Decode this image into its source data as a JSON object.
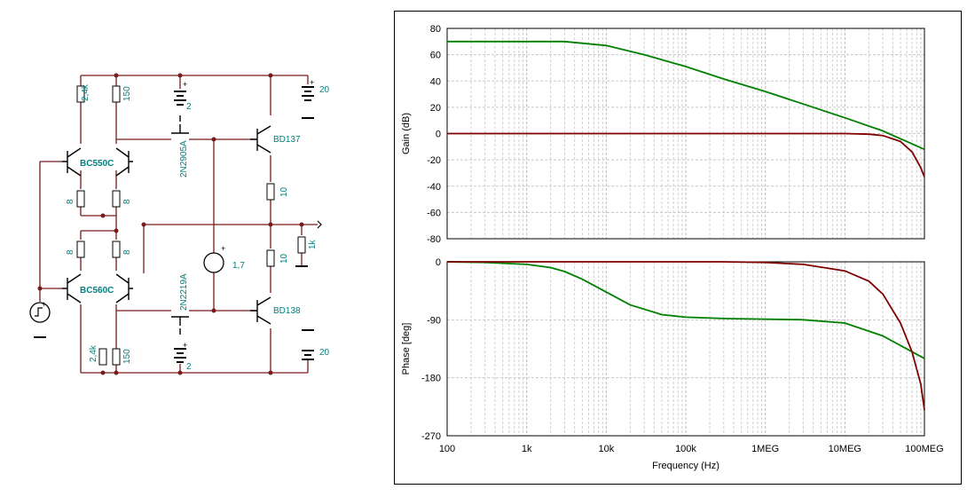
{
  "schematic": {
    "colors": {
      "wire": "#7a1a1a",
      "component": "#000000",
      "label": "#008080"
    },
    "labels": {
      "q_npn_top": "BC550C",
      "q_pnp_bottom": "BC560C",
      "q_pre_top": "2N2905A",
      "q_pre_bottom": "2N2219A",
      "q_out_top": "BD137",
      "q_out_bottom": "BD138",
      "r_top_left": "2,4k",
      "r_top_right": "150",
      "r_bottom_left": "2,4k",
      "r_bottom_right": "150",
      "r_emit_1": "8",
      "r_emit_2": "8",
      "r_emit_3": "8",
      "r_emit_4": "8",
      "r_out_top": "10",
      "r_out_bottom": "10",
      "r_load": "1k",
      "src_bias": "1,7",
      "bat_top_small": "2",
      "bat_bottom_small": "2",
      "bat_top_supply": "20",
      "bat_bottom_supply": "20",
      "plus": "+"
    }
  },
  "chart_data": [
    {
      "type": "line",
      "x_scale": "log",
      "xlim": [
        100,
        100000000
      ],
      "ylim": [
        -80,
        80
      ],
      "ylabel": "Gain (dB)",
      "yticks": [
        "80",
        "60",
        "40",
        "20",
        "0",
        "-20",
        "-40",
        "-60",
        "-80"
      ],
      "ytick_values": [
        80,
        60,
        40,
        20,
        0,
        -20,
        -40,
        -60,
        -80
      ],
      "grid": true,
      "series": [
        {
          "color": "#008000",
          "x": [
            100,
            1000,
            3000,
            10000,
            30000,
            100000,
            300000,
            1000000,
            3000000,
            10000000,
            30000000,
            100000000
          ],
          "values": [
            70,
            70,
            70,
            67,
            60,
            51,
            41.5,
            32,
            22.5,
            12,
            2,
            -12
          ]
        },
        {
          "color": "#800000",
          "x": [
            100,
            1000,
            10000,
            100000,
            1000000,
            10000000,
            20000000,
            30000000,
            50000000,
            70000000,
            90000000,
            100000000
          ],
          "values": [
            0,
            0,
            0,
            0,
            0,
            0,
            -0.5,
            -1.5,
            -6,
            -14,
            -26,
            -33
          ]
        }
      ]
    },
    {
      "type": "line",
      "x_scale": "log",
      "xlim": [
        100,
        100000000
      ],
      "ylim": [
        -270,
        0
      ],
      "ylabel": "Phase [deg]",
      "xlabel": "Frequency (Hz)",
      "xticks": [
        "100",
        "1k",
        "10k",
        "100k",
        "1MEG",
        "10MEG",
        "100MEG"
      ],
      "xtick_values": [
        100,
        1000,
        10000,
        100000,
        1000000,
        10000000,
        100000000
      ],
      "yticks": [
        "0",
        "-90",
        "-180",
        "-270"
      ],
      "ytick_values": [
        0,
        -90,
        -180,
        -270
      ],
      "grid": true,
      "series": [
        {
          "color": "#008000",
          "x": [
            100,
            300,
            1000,
            2000,
            3000,
            5000,
            10000,
            20000,
            50000,
            100000,
            300000,
            1000000,
            3000000,
            10000000,
            30000000,
            100000000
          ],
          "values": [
            0,
            -1,
            -4,
            -9,
            -15,
            -27,
            -47,
            -67,
            -82,
            -86,
            -88,
            -89,
            -90,
            -95,
            -115,
            -150
          ]
        },
        {
          "color": "#800000",
          "x": [
            100,
            1000,
            10000,
            100000,
            300000,
            1000000,
            3000000,
            10000000,
            20000000,
            30000000,
            50000000,
            70000000,
            90000000,
            100000000
          ],
          "values": [
            0,
            0,
            0,
            0,
            0,
            -1,
            -4,
            -14,
            -30,
            -50,
            -95,
            -140,
            -190,
            -230
          ]
        }
      ]
    }
  ]
}
